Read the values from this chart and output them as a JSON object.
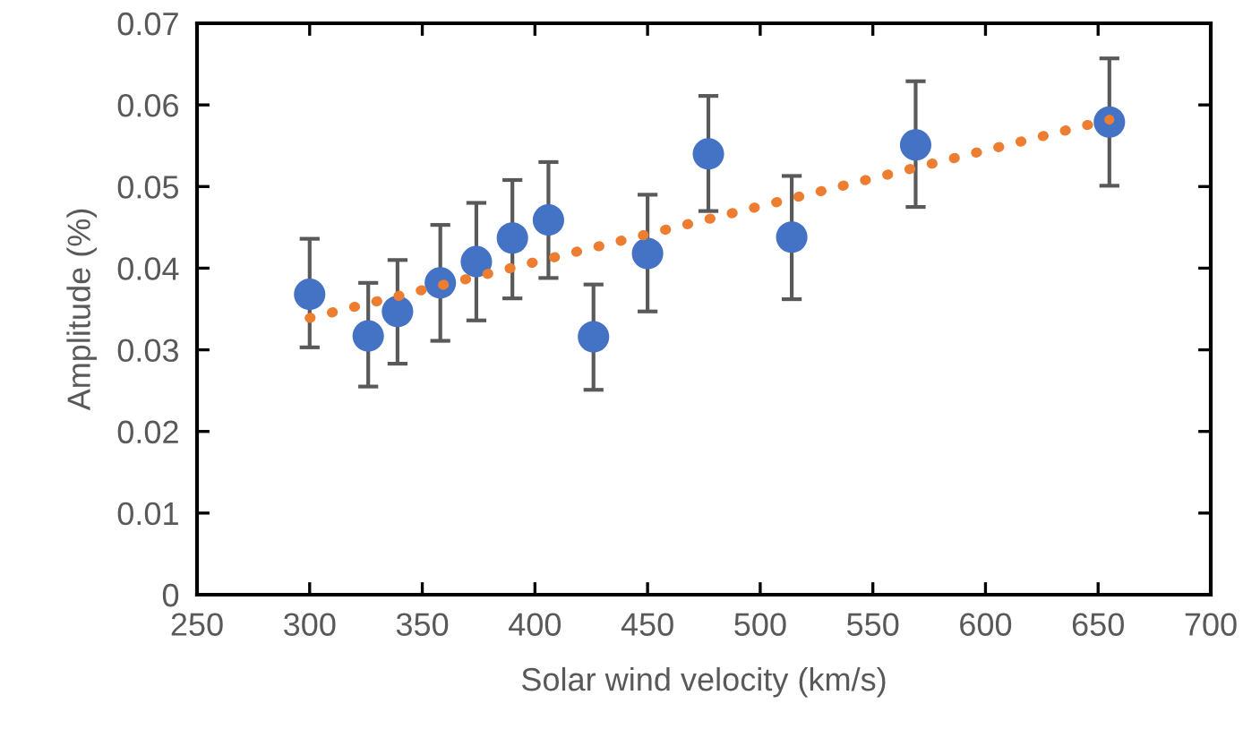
{
  "chart_data": {
    "type": "scatter",
    "xlabel": "Solar wind velocity (km/s)",
    "ylabel": "Amplitude (%)",
    "xlim": [
      250,
      700
    ],
    "xticks": [
      250,
      300,
      350,
      400,
      450,
      500,
      550,
      600,
      650,
      700
    ],
    "ylim": [
      0,
      0.07
    ],
    "yticks": [
      0,
      0.01,
      0.02,
      0.03,
      0.04,
      0.05,
      0.06,
      0.07
    ],
    "grid": false,
    "series": [
      {
        "color": "#4472c4",
        "marker": "circle",
        "x": [
          300,
          326,
          339,
          358,
          374,
          390,
          406,
          426,
          450,
          477,
          514,
          569,
          655
        ],
        "values": [
          0.0368,
          0.0317,
          0.0347,
          0.0382,
          0.0408,
          0.0437,
          0.0459,
          0.0316,
          0.0418,
          0.054,
          0.0438,
          0.0551,
          0.0579
        ],
        "errors": [
          [
            0.0303,
            0.0436
          ],
          [
            0.0255,
            0.0382
          ],
          [
            0.0283,
            0.041
          ],
          [
            0.0311,
            0.0453
          ],
          [
            0.0336,
            0.048
          ],
          [
            0.0363,
            0.0508
          ],
          [
            0.0388,
            0.053
          ],
          [
            0.0251,
            0.038
          ],
          [
            0.0347,
            0.049
          ],
          [
            0.047,
            0.0611
          ],
          [
            0.0362,
            0.0513
          ],
          [
            0.0475,
            0.0629
          ],
          [
            0.0501,
            0.0657
          ]
        ]
      },
      {
        "type": "line",
        "color": "#ed7d31",
        "line_style": "dotted",
        "marker": "none",
        "x": [
          300,
          655
        ],
        "values": [
          0.0339,
          0.0582
        ]
      }
    ]
  }
}
